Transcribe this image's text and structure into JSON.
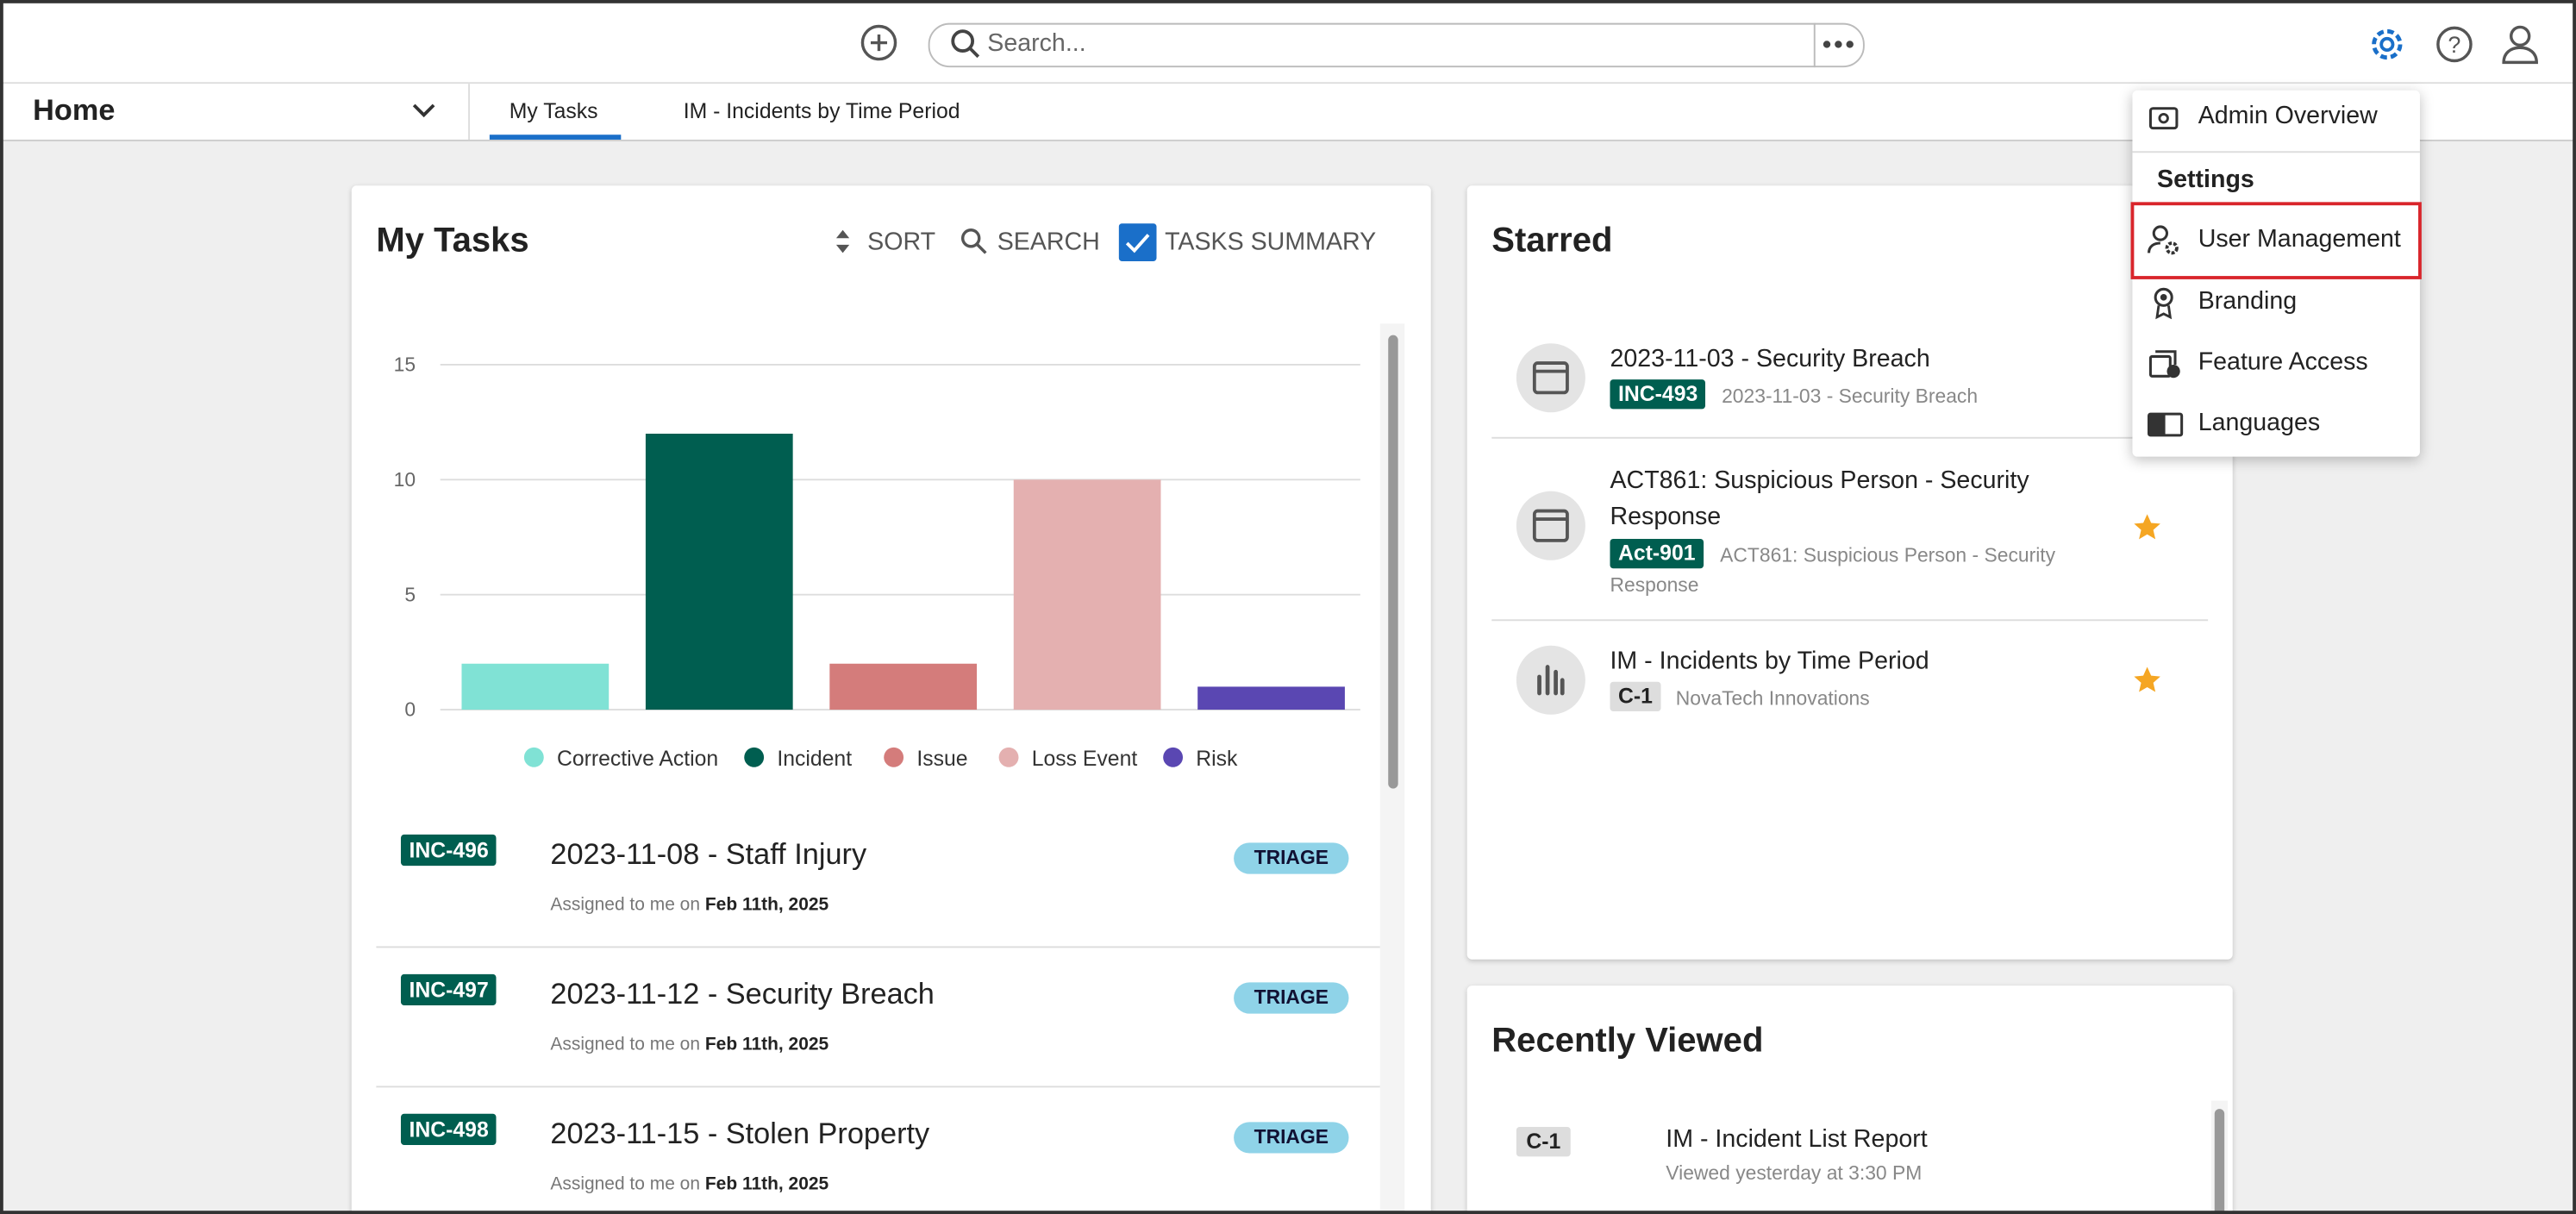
{
  "header": {
    "search_placeholder": "Search..."
  },
  "nav": {
    "home": "Home",
    "tabs": [
      "My Tasks",
      "IM - Incidents by Time Period"
    ]
  },
  "my_tasks": {
    "title": "My Tasks",
    "sort": "SORT",
    "search": "SEARCH",
    "summary": "TASKS SUMMARY",
    "tasks": [
      {
        "id": "INC-496",
        "title": "2023-11-08 - Staff Injury",
        "status": "TRIAGE",
        "assigned": "Assigned to me on",
        "date": "Feb 11th, 2025"
      },
      {
        "id": "INC-497",
        "title": "2023-11-12 - Security Breach",
        "status": "TRIAGE",
        "assigned": "Assigned to me on",
        "date": "Feb 11th, 2025"
      },
      {
        "id": "INC-498",
        "title": "2023-11-15 - Stolen Property",
        "status": "TRIAGE",
        "assigned": "Assigned to me on",
        "date": "Feb 11th, 2025"
      }
    ]
  },
  "chart_data": {
    "type": "bar",
    "categories": [
      "Corrective Action",
      "Incident",
      "Issue",
      "Loss Event",
      "Risk"
    ],
    "values": [
      2,
      12,
      2,
      10,
      1
    ],
    "colors": [
      "#80e2d5",
      "#005e50",
      "#d47c7b",
      "#e4b0b0",
      "#5a47b2"
    ],
    "ylim": [
      0,
      15
    ],
    "yticks": [
      0,
      5,
      10,
      15
    ],
    "grid": true
  },
  "starred": {
    "title": "Starred",
    "items": [
      {
        "title": "2023-11-03 - Security Breach",
        "tag": "INC-493",
        "subtitle": "2023-11-03 - Security Breach"
      },
      {
        "title": "ACT861: Suspicious Person - Security Response",
        "tag": "Act-901",
        "subtitle": "ACT861: Suspicious Person - Security Response"
      },
      {
        "title": "IM - Incidents by Time Period",
        "tag": "C-1",
        "subtitle": "NovaTech Innovations"
      }
    ]
  },
  "recently_viewed": {
    "title": "Recently Viewed",
    "items": [
      {
        "tag": "C-1",
        "title": "IM - Incident List Report",
        "subtitle": "Viewed yesterday at 3:30 PM"
      }
    ]
  },
  "menu": {
    "admin": "Admin Overview",
    "section": "Settings",
    "items": [
      "User Management",
      "Branding",
      "Feature Access",
      "Languages"
    ]
  }
}
